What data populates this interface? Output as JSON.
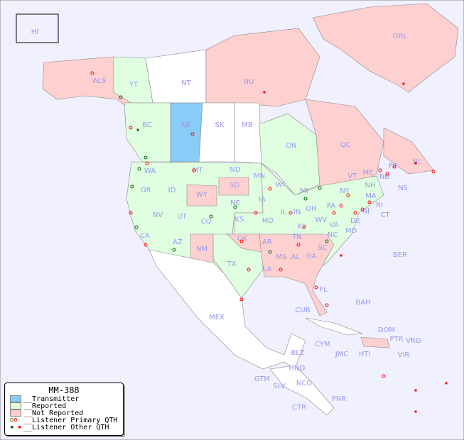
{
  "title": "MM-388",
  "colors": {
    "background": "#f0f0ff",
    "transmitter": "#88ccf8",
    "reported": "#e0ffe0",
    "not_reported": "#ffd0d0",
    "primary_qth_green": "#006600",
    "primary_qth_red": "#ff0000",
    "other_qth": "#ee0000"
  },
  "legend": {
    "items": [
      {
        "label": "__Transmitter",
        "kind": "transmitter"
      },
      {
        "label": "__Reported",
        "kind": "reported"
      },
      {
        "label": "__Not Reported",
        "kind": "not_reported"
      },
      {
        "label": "__Listener Primary QTH",
        "kind": "primary"
      },
      {
        "label": "__Listener Other QTH",
        "kind": "other"
      }
    ]
  },
  "regions": {
    "transmitter": [
      "AB"
    ],
    "reported": [
      "YT",
      "BC",
      "ON",
      "WA",
      "OR",
      "CA",
      "NV",
      "ID",
      "MT",
      "UT",
      "AZ",
      "CO",
      "NE",
      "KS",
      "TX",
      "MN",
      "IA",
      "WI",
      "IL",
      "MO",
      "IN",
      "OH",
      "KY",
      "TN",
      "MI",
      "PA",
      "NY",
      "WV",
      "VA",
      "NC",
      "MD",
      "DE",
      "NJ",
      "CT",
      "RI",
      "MA",
      "VT",
      "NH",
      "ME",
      "NS",
      "PE"
    ],
    "not_reported": [
      "ALS",
      "NU",
      "GRL",
      "QC",
      "NL",
      "NB",
      "WY",
      "SD",
      "NM",
      "OK",
      "AR",
      "LA",
      "MS",
      "AL",
      "GA",
      "SC",
      "FL",
      "DOM",
      "PTR"
    ],
    "unshaded": [
      "NT",
      "SK",
      "MB",
      "ND",
      "MEX",
      "CUB",
      "BAH",
      "CYM",
      "JMC",
      "HTI",
      "VRG",
      "VIR",
      "BER",
      "BLZ",
      "GTM",
      "HND",
      "SLV",
      "NCG",
      "CTR",
      "PNR",
      "HI"
    ]
  },
  "labels": [
    "HI",
    "ALS",
    "YT",
    "NT",
    "NU",
    "GRL",
    "BC",
    "AB",
    "SK",
    "MB",
    "ON",
    "QC",
    "NL",
    "NB",
    "NS",
    "PE",
    "WA",
    "OR",
    "CA",
    "NV",
    "ID",
    "MT",
    "WY",
    "UT",
    "AZ",
    "CO",
    "NM",
    "ND",
    "SD",
    "NE",
    "KS",
    "OK",
    "TX",
    "MN",
    "IA",
    "MO",
    "AR",
    "LA",
    "WI",
    "IL",
    "MI",
    "IN",
    "OH",
    "KY",
    "TN",
    "MS",
    "AL",
    "GA",
    "SC",
    "NC",
    "VA",
    "WV",
    "PA",
    "NY",
    "VT",
    "NH",
    "ME",
    "MA",
    "CT",
    "RI",
    "NJ",
    "DE",
    "MD",
    "FL",
    "MEX",
    "CUB",
    "BAH",
    "BER",
    "DOM",
    "PTR",
    "VRG",
    "VIR",
    "CYM",
    "JMC",
    "HTI",
    "BLZ",
    "HND",
    "GTM",
    "SLV",
    "NCG",
    "CTR",
    "PNR"
  ]
}
